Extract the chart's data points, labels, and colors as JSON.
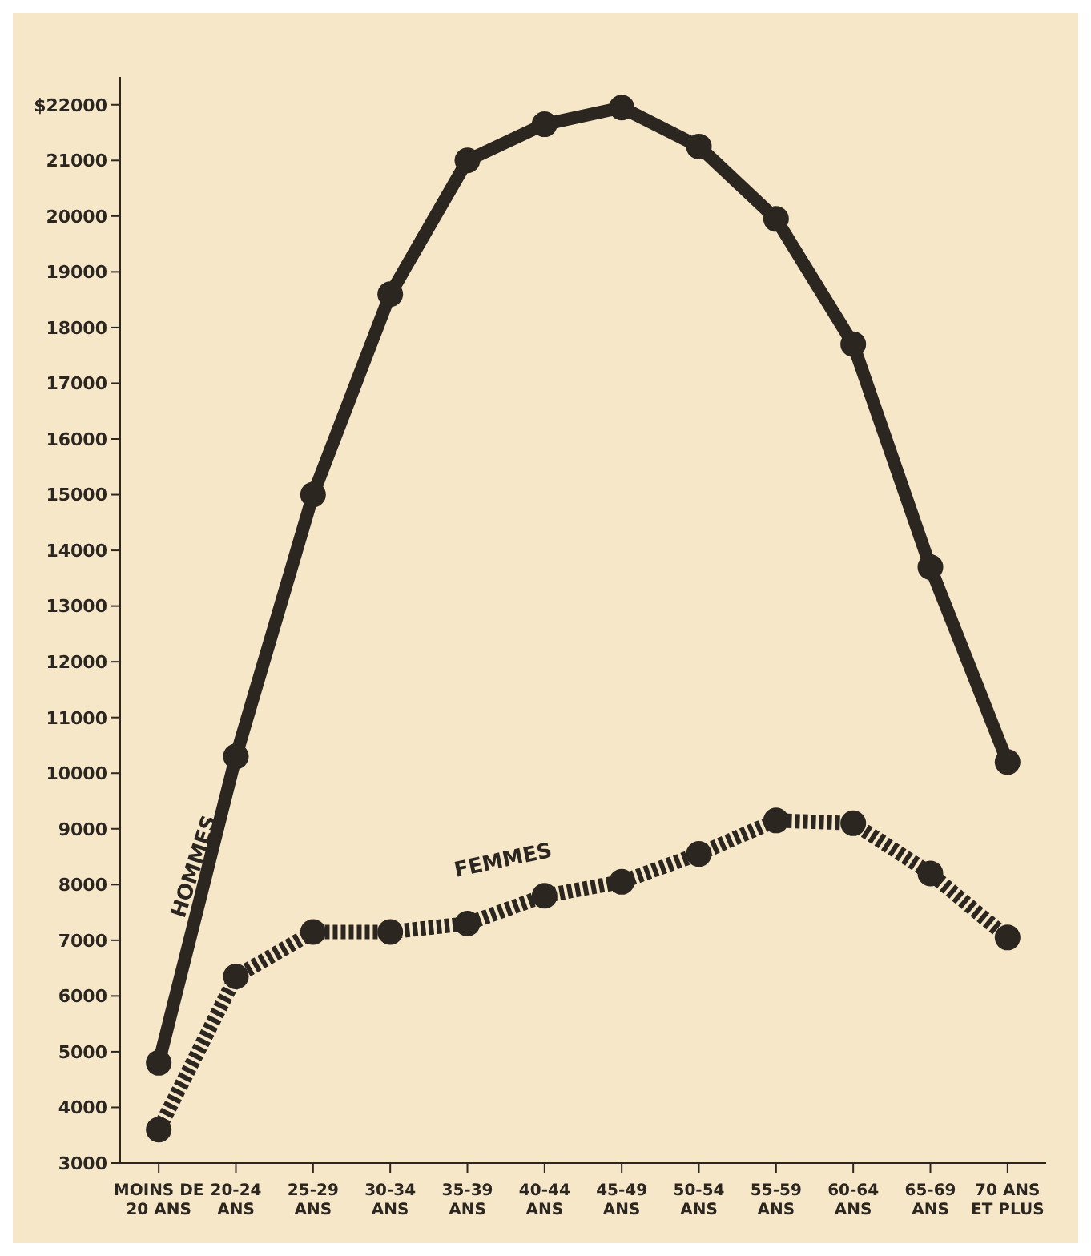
{
  "chart_data": {
    "type": "line",
    "categories": [
      "MOINS DE\n20 ANS",
      "20-24\nANS",
      "25-29\nANS",
      "30-34\nANS",
      "35-39\nANS",
      "40-44\nANS",
      "45-49\nANS",
      "50-54\nANS",
      "55-59\nANS",
      "60-64\nANS",
      "65-69\nANS",
      "70 ANS\nET PLUS"
    ],
    "series": [
      {
        "name": "HOMMES",
        "color": "#2b2620",
        "line_style": "solid",
        "values": [
          4800,
          10300,
          15000,
          18600,
          21000,
          21650,
          21950,
          21250,
          19950,
          17700,
          13700,
          10200
        ]
      },
      {
        "name": "FEMMES",
        "color": "#2b2620",
        "line_style": "dashed",
        "values": [
          3600,
          6350,
          7150,
          7150,
          7300,
          7800,
          8050,
          8550,
          9150,
          9100,
          8200,
          7050
        ]
      }
    ],
    "ylim": [
      3000,
      22500
    ],
    "yticks": [
      3000,
      4000,
      5000,
      6000,
      7000,
      8000,
      9000,
      10000,
      11000,
      12000,
      13000,
      14000,
      15000,
      16000,
      17000,
      18000,
      19000,
      20000,
      21000,
      {
        "value": 22000,
        "label": "$22000"
      }
    ],
    "marker": "circle",
    "grid": false,
    "legend": false
  }
}
